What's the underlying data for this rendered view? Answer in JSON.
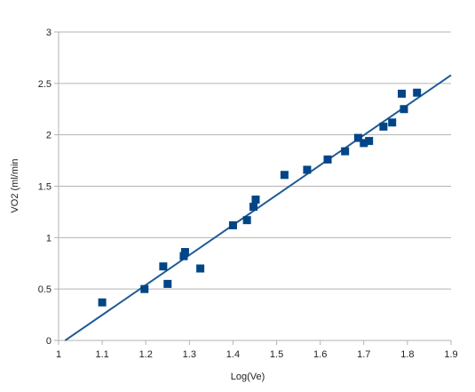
{
  "colors": {
    "series": "#004586",
    "trendline": "#1f5a96",
    "grid": "#b3b3b3"
  },
  "chart_data": {
    "type": "scatter",
    "title": "",
    "xlabel": "Log(Ve)",
    "ylabel": "VO2 (ml/min",
    "xlim": [
      1,
      1.9
    ],
    "ylim": [
      0,
      3
    ],
    "xticks": [
      "1",
      "1.1",
      "1.2",
      "1.3",
      "1.4",
      "1.5",
      "1.6",
      "1.7",
      "1.8",
      "1.9"
    ],
    "yticks": [
      "0",
      "0.5",
      "1",
      "1.5",
      "2",
      "2.5",
      "3"
    ],
    "grid": "horizontal",
    "legend": "none",
    "marker": "square",
    "trendline": {
      "type": "linear",
      "x": [
        1.015,
        1.9
      ],
      "y": [
        0.0,
        2.58
      ]
    },
    "series": [
      {
        "x": [
          1.1,
          1.197,
          1.24,
          1.25,
          1.287,
          1.29,
          1.325,
          1.4,
          1.432,
          1.447,
          1.452,
          1.518,
          1.57,
          1.617,
          1.657,
          1.687,
          1.7,
          1.712,
          1.745,
          1.765,
          1.787,
          1.792,
          1.822
        ],
        "y": [
          0.37,
          0.5,
          0.72,
          0.55,
          0.82,
          0.86,
          0.7,
          1.12,
          1.17,
          1.3,
          1.37,
          1.61,
          1.66,
          1.76,
          1.84,
          1.97,
          1.92,
          1.94,
          2.08,
          2.12,
          2.4,
          2.25,
          2.41
        ]
      }
    ]
  }
}
